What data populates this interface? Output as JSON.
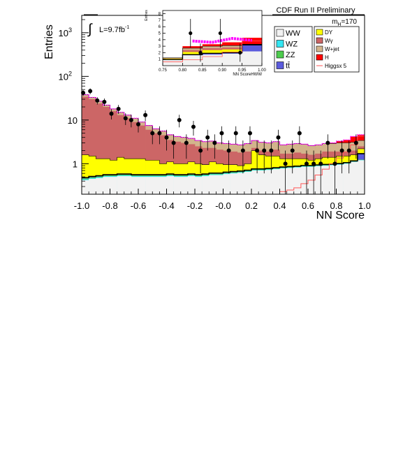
{
  "chart_data": {
    "type": "bar",
    "title": "CDF Run II Preliminary",
    "xlabel": "NN Score",
    "ylabel": "Entries",
    "yscale": "log",
    "xlim": [
      -1.0,
      1.0
    ],
    "ylim": [
      0.2,
      2500
    ],
    "x_ticks": [
      "-1.0",
      "-0.8",
      "-0.6",
      "-0.4",
      "-0.2",
      "-0.0",
      "0.2",
      "0.4",
      "0.6",
      "0.8",
      "1.0"
    ],
    "y_ticks": [
      {
        "base": "1",
        "exp": ""
      },
      {
        "base": "10",
        "exp": ""
      },
      {
        "base": "10",
        "exp": "2"
      },
      {
        "base": "10",
        "exp": "3"
      }
    ],
    "mass_label": {
      "prefix": "m",
      "sub": "H",
      "suffix": "=170"
    },
    "lumi_label": {
      "prefix": "L=9.7fb",
      "sup": "-1"
    },
    "integral_symbol": "∫",
    "legend": {
      "placement": "top-right",
      "column1": [
        {
          "label": "WW",
          "color": "#f2f2f2"
        },
        {
          "label": "WZ",
          "color": "#33e6f2"
        },
        {
          "label": "ZZ",
          "color": "#4dcc4d"
        },
        {
          "label": "tt̄",
          "color": "#5b5bdd"
        }
      ],
      "column2": [
        {
          "label": "DY",
          "color": "#ffff00"
        },
        {
          "label": "Wγ",
          "color": "#cc6666"
        },
        {
          "label": "W+jet",
          "color": "#d2b48c"
        },
        {
          "label": "H",
          "color": "#ff0000"
        },
        {
          "label": "Higgsx 5",
          "color": "#ff5555"
        }
      ]
    },
    "bin_edges": [
      -1.0,
      -0.95,
      -0.9,
      -0.85,
      -0.8,
      -0.75,
      -0.7,
      -0.65,
      -0.6,
      -0.55,
      -0.5,
      -0.45,
      -0.4,
      -0.35,
      -0.3,
      -0.25,
      -0.2,
      -0.15,
      -0.1,
      -0.05,
      0.0,
      0.05,
      0.1,
      0.15,
      0.2,
      0.25,
      0.3,
      0.35,
      0.4,
      0.45,
      0.5,
      0.55,
      0.6,
      0.65,
      0.7,
      0.75,
      0.8,
      0.85,
      0.9,
      0.95,
      1.0
    ],
    "stack_order": [
      "WW",
      "WZ",
      "ZZ",
      "tt̄",
      "DY",
      "Wγ",
      "W+jet",
      "H"
    ],
    "stack_cumulative": {
      "WW": [
        0.42,
        0.45,
        0.47,
        0.5,
        0.5,
        0.52,
        0.52,
        0.5,
        0.5,
        0.5,
        0.5,
        0.5,
        0.52,
        0.5,
        0.5,
        0.52,
        0.5,
        0.52,
        0.55,
        0.55,
        0.58,
        0.6,
        0.62,
        0.65,
        0.7,
        0.7,
        0.72,
        0.75,
        0.78,
        0.8,
        0.82,
        0.85,
        0.85,
        0.88,
        0.9,
        0.92,
        0.95,
        1.0,
        1.1,
        1.2
      ],
      "WZ": [
        0.44,
        0.47,
        0.49,
        0.52,
        0.52,
        0.54,
        0.54,
        0.52,
        0.52,
        0.52,
        0.52,
        0.52,
        0.54,
        0.52,
        0.52,
        0.54,
        0.52,
        0.54,
        0.57,
        0.57,
        0.6,
        0.62,
        0.64,
        0.67,
        0.72,
        0.72,
        0.74,
        0.77,
        0.8,
        0.82,
        0.84,
        0.87,
        0.87,
        0.9,
        0.92,
        0.94,
        0.97,
        1.02,
        1.12,
        1.22
      ],
      "ZZ": [
        0.46,
        0.49,
        0.51,
        0.54,
        0.54,
        0.56,
        0.56,
        0.54,
        0.54,
        0.54,
        0.54,
        0.54,
        0.56,
        0.54,
        0.54,
        0.56,
        0.54,
        0.56,
        0.59,
        0.59,
        0.62,
        0.64,
        0.66,
        0.69,
        0.74,
        0.74,
        0.76,
        0.79,
        0.82,
        0.84,
        0.86,
        0.89,
        0.89,
        0.92,
        0.94,
        0.96,
        0.99,
        1.04,
        1.14,
        1.24
      ],
      "tt̄": [
        0.48,
        0.51,
        0.53,
        0.56,
        0.56,
        0.58,
        0.58,
        0.56,
        0.56,
        0.56,
        0.56,
        0.56,
        0.58,
        0.56,
        0.56,
        0.58,
        0.56,
        0.58,
        0.61,
        0.61,
        0.64,
        0.66,
        0.68,
        0.71,
        0.76,
        0.76,
        0.78,
        0.81,
        0.84,
        0.86,
        0.88,
        0.91,
        0.91,
        0.94,
        0.96,
        0.98,
        1.01,
        1.06,
        1.16,
        1.7
      ],
      "DY": [
        1.6,
        1.5,
        1.3,
        1.3,
        1.2,
        1.4,
        1.3,
        1.3,
        1.3,
        1.2,
        1.2,
        1.0,
        1.1,
        1.0,
        1.0,
        1.1,
        1.0,
        0.95,
        1.1,
        1.0,
        0.95,
        0.95,
        0.9,
        1.0,
        2.0,
        1.6,
        1.5,
        1.5,
        1.3,
        1.3,
        1.3,
        1.3,
        1.2,
        1.3,
        1.4,
        1.4,
        1.5,
        1.5,
        1.6,
        2.2
      ],
      "Wγ": [
        34,
        30,
        24,
        20,
        16,
        13,
        11,
        9,
        7.5,
        6,
        5,
        4.5,
        3.5,
        3.2,
        3.0,
        2.8,
        2.5,
        2.3,
        2.3,
        2.1,
        2.0,
        1.9,
        1.8,
        1.9,
        2.3,
        2.0,
        1.9,
        2.1,
        1.7,
        1.7,
        1.8,
        1.7,
        1.6,
        1.7,
        1.9,
        1.9,
        1.9,
        1.9,
        2.0,
        2.5
      ],
      "W+jet": [
        38,
        33,
        27,
        22,
        18,
        15,
        13,
        11,
        9,
        7.5,
        6.3,
        5.6,
        4.6,
        4.2,
        4.0,
        3.8,
        3.4,
        3.2,
        3.3,
        3.0,
        2.9,
        2.8,
        2.7,
        2.9,
        3.4,
        3.1,
        3.0,
        3.2,
        2.7,
        2.8,
        2.9,
        2.8,
        2.6,
        2.7,
        2.9,
        2.9,
        3.0,
        3.0,
        3.1,
        3.4
      ],
      "H": [
        38,
        33,
        27,
        22,
        18,
        15,
        13,
        11,
        9,
        7.5,
        6.3,
        5.6,
        4.6,
        4.2,
        4.0,
        3.8,
        3.4,
        3.2,
        3.3,
        3.0,
        2.9,
        2.8,
        2.7,
        2.9,
        3.4,
        3.1,
        3.0,
        3.2,
        2.7,
        2.8,
        2.9,
        2.8,
        2.6,
        2.7,
        2.9,
        3.0,
        3.3,
        3.5,
        4.2,
        4.6
      ]
    },
    "signal_x5": [
      0.01,
      0.01,
      0.01,
      0.01,
      0.01,
      0.01,
      0.01,
      0.01,
      0.01,
      0.01,
      0.01,
      0.01,
      0.01,
      0.01,
      0.01,
      0.01,
      0.01,
      0.01,
      0.01,
      0.01,
      0.01,
      0.01,
      0.01,
      0.01,
      0.01,
      0.01,
      0.01,
      0.01,
      0.23,
      0.25,
      0.28,
      0.35,
      0.42,
      0.55,
      0.75,
      1.0,
      1.35,
      1.85,
      2.7,
      4.3
    ],
    "data_points": [
      {
        "x": -0.99,
        "y": 42,
        "err": 6.5
      },
      {
        "x": -0.94,
        "y": 46,
        "err": 7
      },
      {
        "x": -0.89,
        "y": 28,
        "err": 5.3
      },
      {
        "x": -0.84,
        "y": 26,
        "err": 5.1
      },
      {
        "x": -0.79,
        "y": 14,
        "err": 3.7
      },
      {
        "x": -0.74,
        "y": 18,
        "err": 4.2
      },
      {
        "x": -0.69,
        "y": 11,
        "err": 3.3
      },
      {
        "x": -0.65,
        "y": 10,
        "err": 3.2
      },
      {
        "x": -0.6,
        "y": 8,
        "err": 2.8
      },
      {
        "x": -0.55,
        "y": 13,
        "err": 3.6
      },
      {
        "x": -0.5,
        "y": 5,
        "err": 2.2
      },
      {
        "x": -0.45,
        "y": 5,
        "err": 2.2
      },
      {
        "x": -0.4,
        "y": 4,
        "err": 2
      },
      {
        "x": -0.35,
        "y": 3,
        "err": 1.7
      },
      {
        "x": -0.31,
        "y": 10,
        "err": 3.2
      },
      {
        "x": -0.26,
        "y": 3,
        "err": 1.7
      },
      {
        "x": -0.21,
        "y": 7,
        "err": 2.6
      },
      {
        "x": -0.16,
        "y": 2,
        "err": 1.4
      },
      {
        "x": -0.11,
        "y": 4,
        "err": 2
      },
      {
        "x": -0.06,
        "y": 3,
        "err": 1.7
      },
      {
        "x": -0.01,
        "y": 5,
        "err": 2.2
      },
      {
        "x": 0.04,
        "y": 2,
        "err": 1.4
      },
      {
        "x": 0.09,
        "y": 5,
        "err": 2.2
      },
      {
        "x": 0.14,
        "y": 2,
        "err": 1.4
      },
      {
        "x": 0.19,
        "y": 5,
        "err": 2.2
      },
      {
        "x": 0.24,
        "y": 2,
        "err": 1.4
      },
      {
        "x": 0.29,
        "y": 2,
        "err": 1.4
      },
      {
        "x": 0.34,
        "y": 2,
        "err": 1.4
      },
      {
        "x": 0.39,
        "y": 4,
        "err": 2
      },
      {
        "x": 0.44,
        "y": 1,
        "err": 1
      },
      {
        "x": 0.49,
        "y": 2,
        "err": 1.4
      },
      {
        "x": 0.54,
        "y": 5,
        "err": 2.2
      },
      {
        "x": 0.59,
        "y": 1,
        "err": 1
      },
      {
        "x": 0.64,
        "y": 1,
        "err": 1
      },
      {
        "x": 0.69,
        "y": 1,
        "err": 1
      },
      {
        "x": 0.74,
        "y": 3,
        "err": 1.7
      },
      {
        "x": 0.79,
        "y": 1,
        "err": 1
      },
      {
        "x": 0.84,
        "y": 2,
        "err": 1.4
      },
      {
        "x": 0.89,
        "y": 2,
        "err": 1.4
      },
      {
        "x": 0.94,
        "y": 3,
        "err": 1.7
      }
    ],
    "inset": {
      "xlabel": "NN ScoreHWW",
      "ylabel": "Entries",
      "xlim": [
        0.75,
        1.0
      ],
      "ylim": [
        0,
        8.5
      ],
      "x_ticks": [
        "0.75",
        "0.80",
        "0.85",
        "0.90",
        "0.95",
        "1.00"
      ],
      "y_ticks": [
        "1",
        "2",
        "3",
        "4",
        "5",
        "6",
        "7",
        "8"
      ],
      "bin_edges": [
        0.75,
        0.8,
        0.85,
        0.9,
        0.95,
        1.0
      ],
      "stack_cumulative": {
        "WW": [
          0.9,
          1.6,
          1.7,
          1.85,
          2.2
        ],
        "tt̄": [
          0.95,
          1.7,
          1.9,
          2.0,
          3.2
        ],
        "DY": [
          1.1,
          2.1,
          2.4,
          2.5,
          3.0
        ],
        "Wγ": [
          1.15,
          2.4,
          2.7,
          2.8,
          3.0
        ],
        "W+jet": [
          1.2,
          2.7,
          3.0,
          3.1,
          3.3
        ],
        "H": [
          1.2,
          3.0,
          3.3,
          3.6,
          4.3
        ]
      },
      "signal_x5": [
        0.6,
        0.9,
        1.4,
        2.1,
        3.8
      ],
      "magenta_band": [
        3.8,
        3.6,
        4.2,
        3.9
      ],
      "data_points": [
        {
          "x": 0.82,
          "y": 5,
          "err": 2.2
        },
        {
          "x": 0.845,
          "y": 2,
          "err": 1.4
        },
        {
          "x": 0.895,
          "y": 5,
          "err": 2.2
        },
        {
          "x": 0.945,
          "y": 2,
          "err": 1.4
        }
      ]
    }
  }
}
